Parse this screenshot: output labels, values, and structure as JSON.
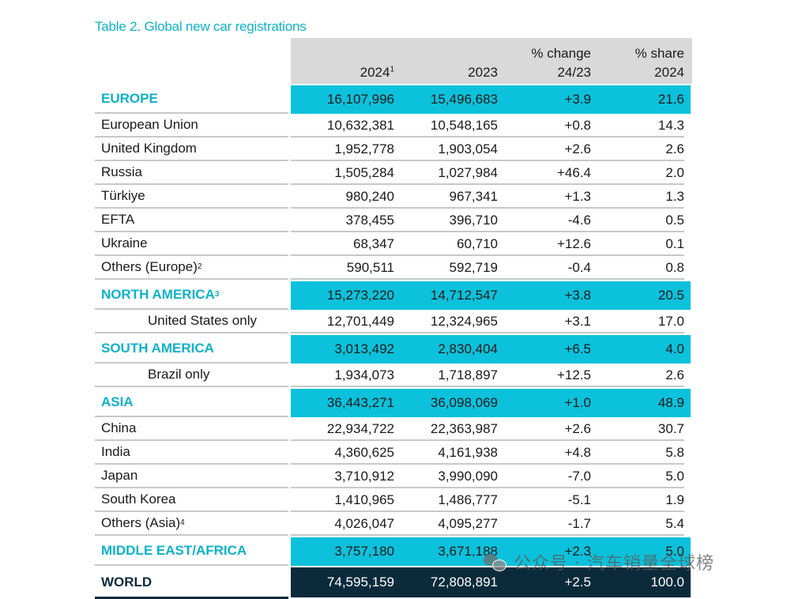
{
  "title": "Table 2. Global new car registrations",
  "headers": {
    "col1": "2024",
    "col1_sup": "1",
    "col2": "2023",
    "col3_line1": "% change",
    "col3_line2": "24/23",
    "col4_line1": "% share",
    "col4_line2": "2024"
  },
  "rows": [
    {
      "type": "region",
      "name": "EUROPE",
      "sup": "",
      "v2024": "16,107,996",
      "v2023": "15,496,683",
      "change": "+3.9",
      "share": "21.6"
    },
    {
      "type": "detail",
      "name": "European Union",
      "sup": "",
      "v2024": "10,632,381",
      "v2023": "10,548,165",
      "change": "+0.8",
      "share": "14.3"
    },
    {
      "type": "detail",
      "name": "United Kingdom",
      "sup": "",
      "v2024": "1,952,778",
      "v2023": "1,903,054",
      "change": "+2.6",
      "share": "2.6"
    },
    {
      "type": "detail",
      "name": "Russia",
      "sup": "",
      "v2024": "1,505,284",
      "v2023": "1,027,984",
      "change": "+46.4",
      "share": "2.0"
    },
    {
      "type": "detail",
      "name": "Türkiye",
      "sup": "",
      "v2024": "980,240",
      "v2023": "967,341",
      "change": "+1.3",
      "share": "1.3"
    },
    {
      "type": "detail",
      "name": "EFTA",
      "sup": "",
      "v2024": "378,455",
      "v2023": "396,710",
      "change": "-4.6",
      "share": "0.5"
    },
    {
      "type": "detail",
      "name": "Ukraine",
      "sup": "",
      "v2024": "68,347",
      "v2023": "60,710",
      "change": "+12.6",
      "share": "0.1"
    },
    {
      "type": "detail",
      "name": "Others (Europe)",
      "sup": "2",
      "v2024": "590,511",
      "v2023": "592,719",
      "change": "-0.4",
      "share": "0.8"
    },
    {
      "type": "region",
      "name": "NORTH AMERICA",
      "sup": "3",
      "v2024": "15,273,220",
      "v2023": "14,712,547",
      "change": "+3.8",
      "share": "20.5"
    },
    {
      "type": "detail",
      "indent": true,
      "name": "United States only",
      "sup": "",
      "v2024": "12,701,449",
      "v2023": "12,324,965",
      "change": "+3.1",
      "share": "17.0"
    },
    {
      "type": "region",
      "name": "SOUTH AMERICA",
      "sup": "",
      "v2024": "3,013,492",
      "v2023": "2,830,404",
      "change": "+6.5",
      "share": "4.0"
    },
    {
      "type": "detail",
      "indent": true,
      "name": "Brazil only",
      "sup": "",
      "v2024": "1,934,073",
      "v2023": "1,718,897",
      "change": "+12.5",
      "share": "2.6"
    },
    {
      "type": "region",
      "name": "ASIA",
      "sup": "",
      "v2024": "36,443,271",
      "v2023": "36,098,069",
      "change": "+1.0",
      "share": "48.9"
    },
    {
      "type": "detail",
      "name": "China",
      "sup": "",
      "v2024": "22,934,722",
      "v2023": "22,363,987",
      "change": "+2.6",
      "share": "30.7"
    },
    {
      "type": "detail",
      "name": "India",
      "sup": "",
      "v2024": "4,360,625",
      "v2023": "4,161,938",
      "change": "+4.8",
      "share": "5.8"
    },
    {
      "type": "detail",
      "name": "Japan",
      "sup": "",
      "v2024": "3,710,912",
      "v2023": "3,990,090",
      "change": "-7.0",
      "share": "5.0"
    },
    {
      "type": "detail",
      "name": "South Korea",
      "sup": "",
      "v2024": "1,410,965",
      "v2023": "1,486,777",
      "change": "-5.1",
      "share": "1.9"
    },
    {
      "type": "detail",
      "name": "Others (Asia)",
      "sup": "4",
      "v2024": "4,026,047",
      "v2023": "4,095,277",
      "change": "-1.7",
      "share": "5.4"
    },
    {
      "type": "region",
      "name": "MIDDLE EAST/AFRICA",
      "sup": "",
      "v2024": "3,757,180",
      "v2023": "3,671,188",
      "change": "+2.3",
      "share": "5.0"
    },
    {
      "type": "world",
      "name": "WORLD",
      "sup": "",
      "v2024": "74,595,159",
      "v2023": "72,808,891",
      "change": "+2.5",
      "share": "100.0"
    }
  ],
  "watermark": {
    "text": "公众号 · 汽车销量全球榜",
    "icon": "wechat-icon"
  }
}
